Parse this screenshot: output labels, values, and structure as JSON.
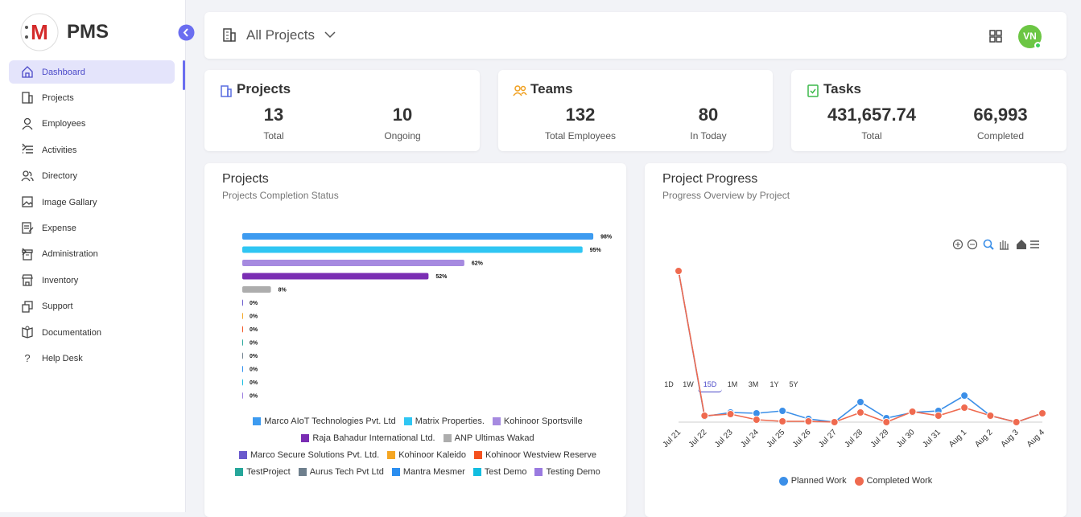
{
  "sidebar": {
    "brand": "PMS",
    "active": 0,
    "nav": [
      "Dashboard",
      "Projects",
      "Employees",
      "Activities",
      "Directory",
      "Image Gallary",
      "Expense",
      "Administration",
      "Inventory",
      "Support",
      "Documentation",
      "Help Desk"
    ]
  },
  "header": {
    "project_selector": "All Projects",
    "avatar": "VN"
  },
  "stats": [
    {
      "title": "Projects",
      "items": [
        {
          "value": "13",
          "label": "Total"
        },
        {
          "value": "10",
          "label": "Ongoing"
        }
      ]
    },
    {
      "title": "Teams",
      "items": [
        {
          "value": "132",
          "label": "Total Employees"
        },
        {
          "value": "80",
          "label": "In Today"
        }
      ]
    },
    {
      "title": "Tasks",
      "items": [
        {
          "value": "431,657.74",
          "label": "Total"
        },
        {
          "value": "66,993",
          "label": "Completed"
        }
      ]
    }
  ],
  "chart_data": [
    {
      "type": "bar",
      "orientation": "horizontal",
      "title": "Projects",
      "subtitle": "Projects Completion Status",
      "categories": [
        "Marco AIoT Technologies Pvt. Ltd",
        "Matrix Properties.",
        "Kohinoor Sportsville",
        "Raja Bahadur International Ltd.",
        "ANP Ultimas Wakad",
        "Marco Secure Solutions Pvt. Ltd.",
        "Kohinoor Kaleido",
        "Kohinoor Westview Reserve",
        "TestProject",
        "Aurus Tech Pvt Ltd",
        "Mantra Mesmer",
        "Test Demo",
        "Testing Demo"
      ],
      "values": [
        98,
        95,
        62,
        52,
        8,
        0,
        0,
        0,
        0,
        0,
        0,
        0,
        0
      ],
      "value_labels": [
        "98%",
        "95%",
        "62%",
        "52%",
        "8%",
        "0%",
        "0%",
        "0%",
        "0%",
        "0%",
        "0%",
        "0%",
        "0%"
      ],
      "colors": [
        "#3d9bf0",
        "#2fc6f3",
        "#a68ae0",
        "#7a2db3",
        "#adadad",
        "#6a5acd",
        "#f5a623",
        "#f4511e",
        "#26a69a",
        "#6e7f8d",
        "#2b8ef0",
        "#12bde0",
        "#9a7ae0"
      ],
      "xlim": [
        0,
        100
      ]
    },
    {
      "type": "line",
      "title": "Project Progress",
      "subtitle": "Progress Overview by Project",
      "ranges": [
        "1D",
        "1W",
        "15D",
        "1M",
        "3M",
        "1Y",
        "5Y"
      ],
      "active_range": 2,
      "x": [
        "Jul 21",
        "Jul 22",
        "Jul 23",
        "Jul 24",
        "Jul 25",
        "Jul 26",
        "Jul 27",
        "Jul 28",
        "Jul 29",
        "Jul 30",
        "Jul 31",
        "Aug 1",
        "Aug 2",
        "Aug 3",
        "Aug 4"
      ],
      "series": [
        {
          "name": "Planned Work",
          "color": "#3b8fe8",
          "values": [
            188,
            7,
            12,
            11,
            14,
            4,
            0,
            25,
            5,
            12,
            14,
            33,
            8,
            0,
            11
          ]
        },
        {
          "name": "Completed Work",
          "color": "#ef6a4f",
          "values": [
            188,
            8,
            10,
            3,
            1,
            1,
            0,
            12,
            0,
            13,
            8,
            18,
            8,
            0,
            11
          ]
        }
      ],
      "ylim": [
        0,
        200
      ]
    }
  ]
}
